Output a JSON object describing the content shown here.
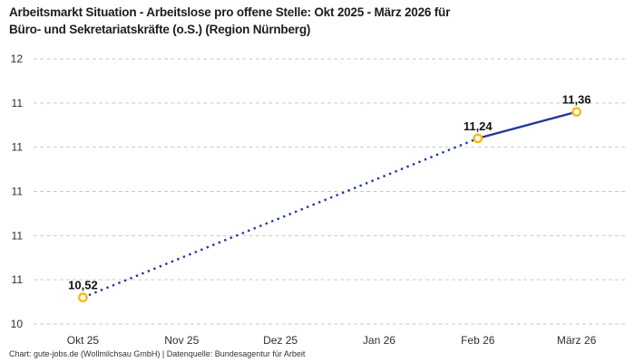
{
  "page": {
    "title_lines": [
      "Arbeitsmarkt Situation - Arbeitslose pro offene Stelle: Okt 2025 - März 2026 für",
      "Büro- und Sekretariatskräfte (o.S.) (Region Nürnberg)"
    ],
    "footer": "Chart: gute-jobs.de (Wollmilchsau GmbH) | Datenquelle: Bundesagentur für Arbeit"
  },
  "chart_data": {
    "type": "line",
    "title": "Arbeitsmarkt Situation - Arbeitslose pro offene Stelle: Okt 2025 - März 2026 für Büro- und Sekretariatskräfte (o.S.) (Region Nürnberg)",
    "xlabel": "",
    "ylabel": "",
    "legend_position": "none",
    "grid": "horizontal-dashed",
    "categories": [
      "Okt 25",
      "Nov 25",
      "Dez 25",
      "Jan 26",
      "Feb 26",
      "März 26"
    ],
    "series": [
      {
        "name": "Arbeitslose pro offene Stelle",
        "points": [
          {
            "category": "Okt 25",
            "value": 10.52,
            "label": "10,52"
          },
          {
            "category": "Feb 26",
            "value": 11.24,
            "label": "11,24"
          },
          {
            "category": "März 26",
            "value": 11.36,
            "label": "11,36"
          }
        ],
        "segments": [
          {
            "from": "Okt 25",
            "to": "Feb 26",
            "style": "dotted"
          },
          {
            "from": "Feb 26",
            "to": "März 26",
            "style": "solid"
          }
        ]
      }
    ],
    "x_axis": {
      "tick_labels": [
        "Okt 25",
        "Nov 25",
        "Dez 25",
        "Jan 26",
        "Feb 26",
        "März 26"
      ]
    },
    "y_axis": {
      "range": [
        10.4,
        11.6
      ],
      "gridline_values": [
        11.6,
        11.4,
        11.2,
        11.0,
        10.8,
        10.6,
        10.4
      ],
      "tick_labels": [
        "12",
        "11",
        "11",
        "11",
        "11",
        "11",
        "10"
      ]
    },
    "colors": {
      "line": "#22389b",
      "marker_ring": "#fdb913",
      "marker_fill": "#ffffff",
      "gridline": "#c9c9c9",
      "title_text": "#1d1d1d",
      "tick_text": "#2f2f2f",
      "data_label_text": "#111111",
      "footer_text": "#333333"
    }
  }
}
